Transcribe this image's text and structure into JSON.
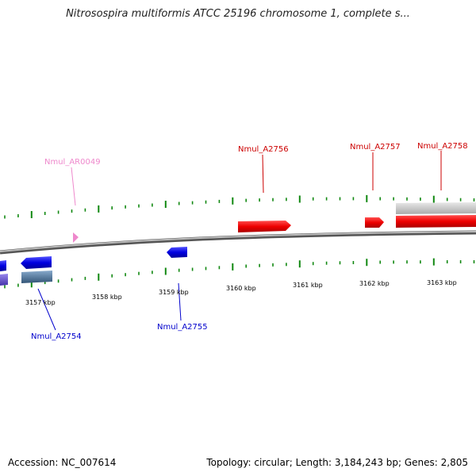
{
  "title": "Nitrosospira multiformis ATCC 25196 chromosome 1, complete s...",
  "footer": {
    "accession": "Accession: NC_007614",
    "summary": "Topology: circular; Length: 3,184,243 bp; Genes: 2,805"
  },
  "colors": {
    "forward_gene": "#ff0000",
    "reverse_gene": "#0000ee",
    "rna_gene": "#ee88cc",
    "tick": "#118811",
    "backbone": "#888888"
  },
  "scale_labels": [
    "3157 kbp",
    "3158 kbp",
    "3159 kbp",
    "3160 kbp",
    "3161 kbp",
    "3162 kbp",
    "3163 kbp"
  ],
  "gene_labels": {
    "nmul_ar0049": "Nmul_AR0049",
    "nmul_a2754": "Nmul_A2754",
    "nmul_a2755": "Nmul_A2755",
    "nmul_a2756": "Nmul_A2756",
    "nmul_a2757": "Nmul_A2757",
    "nmul_a2758": "Nmul_A2758"
  }
}
